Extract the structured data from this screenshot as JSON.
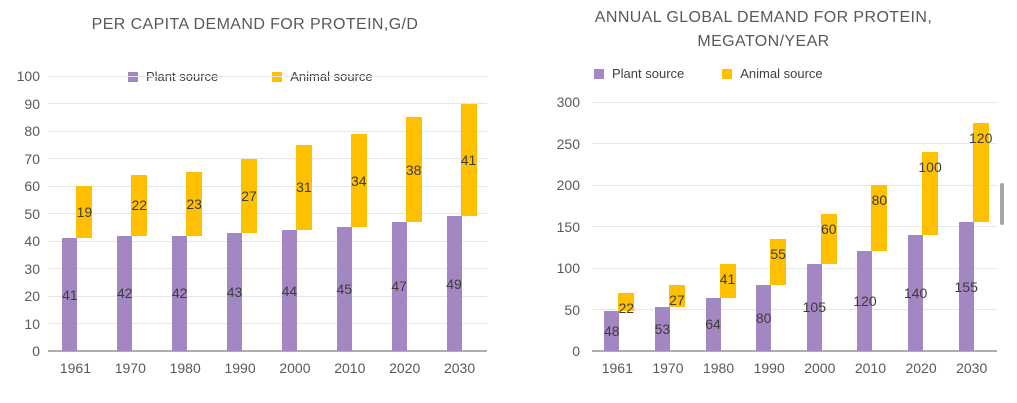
{
  "page": {
    "background": "#FFFFFF"
  },
  "chart_data": [
    {
      "type": "bar",
      "stacked": true,
      "title": "PER CAPITA DEMAND FOR PROTEIN,G/D",
      "title_lines": [
        "PER CAPITA DEMAND FOR PROTEIN,G/D"
      ],
      "categories": [
        "1961",
        "1970",
        "1980",
        "1990",
        "2000",
        "2010",
        "2020",
        "2030"
      ],
      "series": [
        {
          "name": "Plant source",
          "color": "#A387C2",
          "values": [
            41,
            42,
            42,
            43,
            44,
            45,
            47,
            49
          ],
          "label_position": "center"
        },
        {
          "name": "Animal source",
          "color": "#FFC002",
          "values": [
            19,
            22,
            23,
            27,
            31,
            34,
            38,
            41
          ],
          "label_position": "center"
        }
      ],
      "totals": [
        60,
        64,
        65,
        70,
        75,
        79,
        85,
        90
      ],
      "xlabel": "",
      "ylabel": "",
      "ylim": [
        0,
        100
      ],
      "yticks": [
        0,
        10,
        20,
        30,
        40,
        50,
        60,
        70,
        80,
        90,
        100
      ],
      "grid": true,
      "legend_position": "top-inside"
    },
    {
      "type": "bar",
      "stacked": true,
      "title": "ANNUAL GLOBAL DEMAND FOR PROTEIN, MEGATON/YEAR",
      "title_lines": [
        "ANNUAL GLOBAL DEMAND FOR PROTEIN,",
        "MEGATON/YEAR"
      ],
      "categories": [
        "1961",
        "1970",
        "1980",
        "1990",
        "2000",
        "2010",
        "2020",
        "2030"
      ],
      "series": [
        {
          "name": "Plant source",
          "color": "#A387C2",
          "values": [
            48,
            53,
            64,
            80,
            105,
            120,
            140,
            155
          ],
          "label_position": "center"
        },
        {
          "name": "Animal source",
          "color": "#FFC002",
          "values": [
            22,
            27,
            41,
            55,
            60,
            80,
            100,
            120
          ],
          "label_position": "inside-top"
        }
      ],
      "totals": [
        70,
        80,
        105,
        135,
        165,
        200,
        240,
        275
      ],
      "xlabel": "",
      "ylabel": "",
      "ylim": [
        0,
        300
      ],
      "yticks": [
        0,
        50,
        100,
        150,
        200,
        250,
        300
      ],
      "grid": true,
      "legend_position": "top"
    }
  ],
  "colors": {
    "plant": "#A387C2",
    "animal": "#FFC002",
    "title_text": "#595959",
    "axis_text": "#595959",
    "data_label_text": "#3D3D3D",
    "gridline": "#E6E6E6",
    "axis_line": "#ADADAD",
    "scrollbar": "#A6A6A6"
  }
}
